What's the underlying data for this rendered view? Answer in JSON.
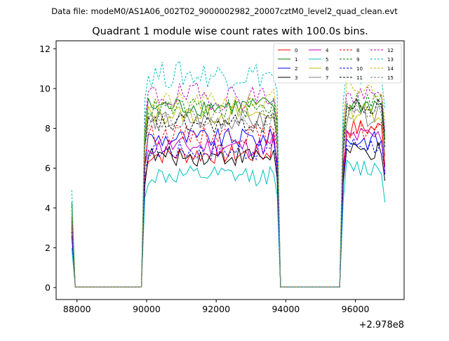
{
  "chart_data": {
    "type": "line",
    "suptitle": "Data file: modeM0/AS1A06_002T02_9000002982_20007cztM0_level2_quad_clean.evt",
    "title": "Quadrant 1 module wise count rates with 100.0s bins.",
    "xlabel": "",
    "ylabel": "",
    "x_offset_label": "+2.978e8",
    "xlim": [
      87400,
      97400
    ],
    "ylim": [
      -0.6,
      12.4
    ],
    "xticks": [
      88000,
      90000,
      92000,
      94000,
      96000
    ],
    "xtick_labels": [
      "88000",
      "90000",
      "92000",
      "94000",
      "96000"
    ],
    "yticks": [
      0,
      2,
      4,
      6,
      8,
      10,
      12
    ],
    "ytick_labels": [
      "0",
      "2",
      "4",
      "6",
      "8",
      "10",
      "12"
    ],
    "grid": false,
    "legend_location": "top-right",
    "segments": [
      {
        "name": "segment-1",
        "x_start": 87850,
        "x_end": 88850
      },
      {
        "name": "segment-2",
        "x_start": 89950,
        "x_end": 93750
      },
      {
        "name": "segment-3",
        "x_start": 95650,
        "x_end": 96850
      }
    ],
    "series": [
      {
        "name": "0",
        "color": "#ff0000",
        "dash": "solid",
        "levels": {
          "start": 3.0,
          "mid": 6.7,
          "late": 8.0
        }
      },
      {
        "name": "1",
        "color": "#008000",
        "dash": "solid",
        "levels": {
          "start": 4.3,
          "mid": 9.1,
          "late": 9.2
        }
      },
      {
        "name": "2",
        "color": "#0000ff",
        "dash": "solid",
        "levels": {
          "start": 2.6,
          "mid": 7.5,
          "late": 7.4
        }
      },
      {
        "name": "3",
        "color": "#000000",
        "dash": "solid",
        "levels": {
          "start": 3.4,
          "mid": 6.6,
          "late": 6.8
        }
      },
      {
        "name": "4",
        "color": "#bf00bf",
        "dash": "solid",
        "levels": {
          "start": 3.6,
          "mid": 7.1,
          "late": 7.6
        }
      },
      {
        "name": "5",
        "color": "#00bfbf",
        "dash": "solid",
        "levels": {
          "start": 2.0,
          "mid": 5.6,
          "late": 6.0
        }
      },
      {
        "name": "6",
        "color": "#bfbf00",
        "dash": "solid",
        "levels": {
          "start": 3.9,
          "mid": 8.7,
          "late": 8.8
        }
      },
      {
        "name": "7",
        "color": "#808080",
        "dash": "solid",
        "levels": {
          "start": 3.8,
          "mid": 8.4,
          "late": 8.6
        }
      },
      {
        "name": "8",
        "color": "#ff0000",
        "dash": "dashed",
        "levels": {
          "start": 3.1,
          "mid": 7.7,
          "late": 7.9
        }
      },
      {
        "name": "9",
        "color": "#008000",
        "dash": "dashed",
        "levels": {
          "start": 4.1,
          "mid": 9.0,
          "late": 9.4
        }
      },
      {
        "name": "10",
        "color": "#0000ff",
        "dash": "dashed",
        "levels": {
          "start": 2.8,
          "mid": 6.9,
          "late": 7.2
        }
      },
      {
        "name": "11",
        "color": "#000000",
        "dash": "dashed",
        "levels": {
          "start": 3.3,
          "mid": 8.2,
          "late": 9.0
        }
      },
      {
        "name": "12",
        "color": "#bf00bf",
        "dash": "dashed",
        "levels": {
          "start": 3.5,
          "mid": 9.6,
          "late": 9.6
        }
      },
      {
        "name": "13",
        "color": "#00bfbf",
        "dash": "dashed",
        "levels": {
          "start": 4.9,
          "mid": 10.7,
          "late": 10.6
        }
      },
      {
        "name": "14",
        "color": "#bfbf00",
        "dash": "dashed",
        "levels": {
          "start": 4.0,
          "mid": 9.3,
          "late": 9.9
        }
      },
      {
        "name": "15",
        "color": "#808080",
        "dash": "dashed",
        "levels": {
          "start": 3.6,
          "mid": 8.5,
          "late": 8.9
        }
      }
    ]
  }
}
